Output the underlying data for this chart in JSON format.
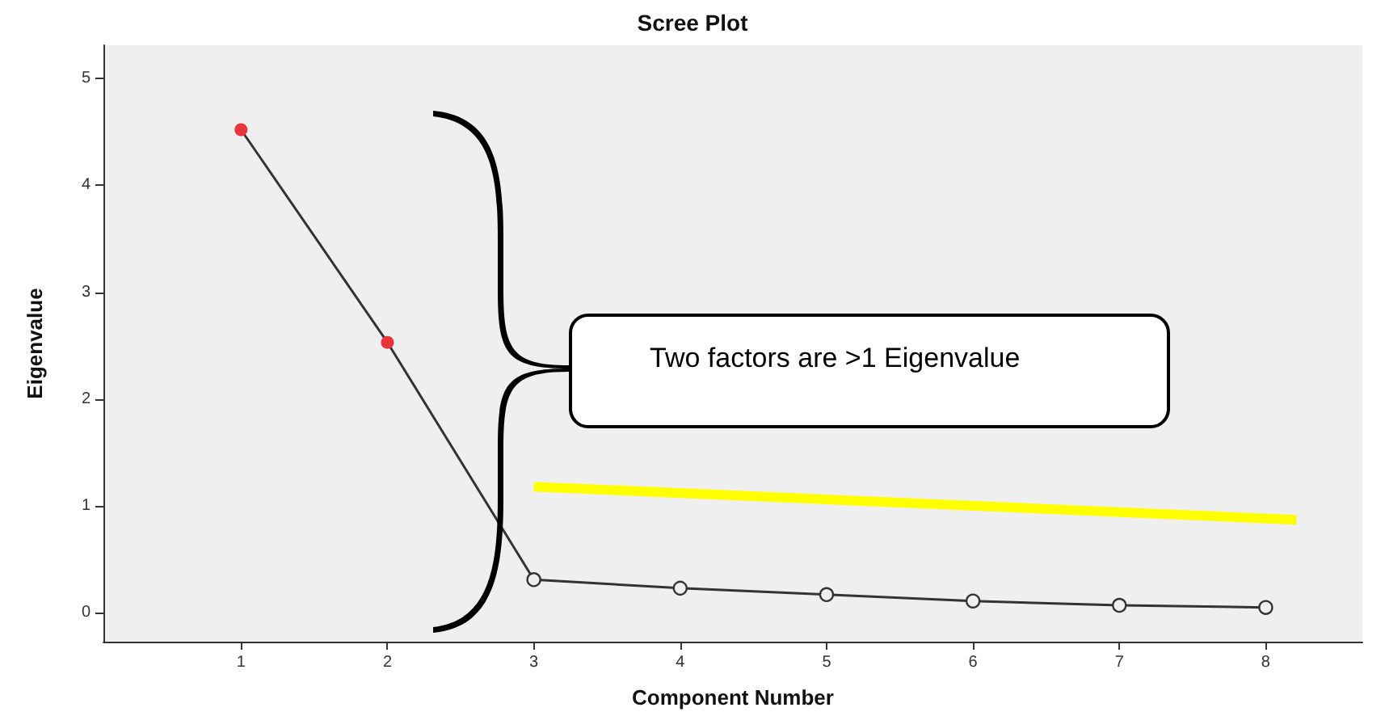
{
  "chart_data": {
    "type": "line",
    "title": "Scree Plot",
    "xlabel": "Component Number",
    "ylabel": "Eigenvalue",
    "x": [
      1,
      2,
      3,
      4,
      5,
      6,
      7,
      8
    ],
    "series": [
      {
        "color": "#333333",
        "colors": [
          "#e8343a",
          "#e8343a",
          "#333333",
          "#333333",
          "#333333",
          "#333333",
          "#333333",
          "#333333"
        ],
        "values": [
          4.52,
          2.53,
          0.31,
          0.23,
          0.17,
          0.11,
          0.07,
          0.05
        ]
      },
      {
        "color": "#ffff00",
        "x": [
          3,
          8.21
        ],
        "values": [
          1.18,
          0.87
        ],
        "marker": "none"
      }
    ],
    "xlim": [
      0.06,
      8.66
    ],
    "xticks": [
      1,
      2,
      3,
      4,
      5,
      6,
      7,
      8
    ],
    "ylim": [
      -0.27,
      5.31
    ],
    "yticks": [
      0,
      1,
      2,
      3,
      4,
      5
    ],
    "annotations": [
      "Two factors are >1 Eigenvalue"
    ],
    "grid": false,
    "marker": "circle"
  }
}
